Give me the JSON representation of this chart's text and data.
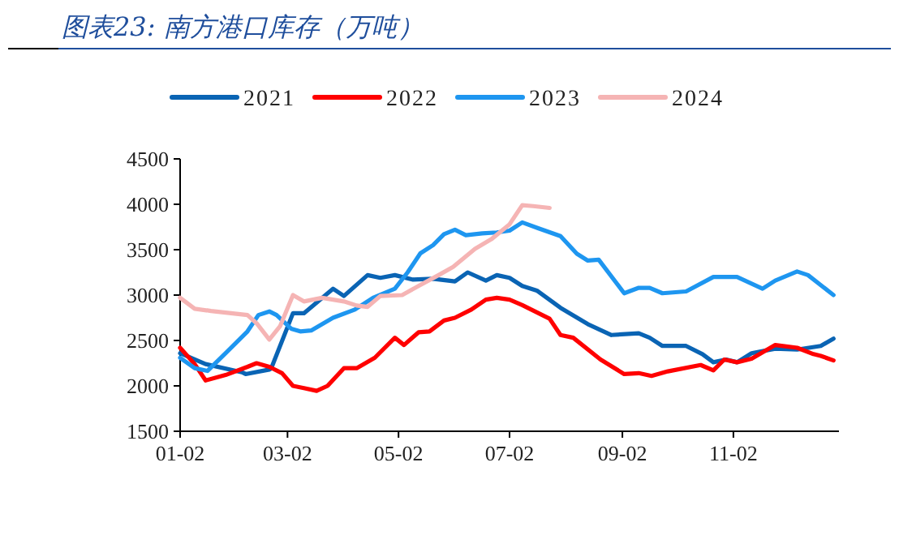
{
  "chart_data": {
    "type": "line",
    "title": "图表23: 南方港口库存（万吨）",
    "xlim": [
      "--01-02",
      "--12-30"
    ],
    "xticks": [
      {
        "value": "--01-02",
        "label": "01-02"
      },
      {
        "value": "--03-02",
        "label": "03-02"
      },
      {
        "value": "--05-02",
        "label": "05-02"
      },
      {
        "value": "--07-02",
        "label": "07-02"
      },
      {
        "value": "--09-02",
        "label": "09-02"
      },
      {
        "value": "--11-02",
        "label": "11-02"
      }
    ],
    "ylim": [
      1500,
      4500
    ],
    "yticks": [
      1500,
      2000,
      2500,
      3000,
      3500,
      4000,
      4500
    ],
    "grid": false,
    "legend": "top",
    "marker": "none",
    "line_style": "solid",
    "series": [
      {
        "name": "2021",
        "color": "#0a64b4",
        "x": [
          "--01-02",
          "--01-16",
          "--02-05",
          "--02-07",
          "--02-20",
          "--02-21",
          "--03-05",
          "--03-11",
          "--03-27",
          "--04-02",
          "--04-15",
          "--04-22",
          "--04-30",
          "--05-10",
          "--05-21",
          "--06-02",
          "--06-09",
          "--06-19",
          "--06-25",
          "--07-02",
          "--07-09",
          "--07-17",
          "--07-30",
          "--08-14",
          "--08-27",
          "--09-11",
          "--09-17",
          "--09-24",
          "--10-07",
          "--10-16",
          "--10-22",
          "--10-29",
          "--11-04",
          "--11-12",
          "--11-25",
          "--12-07",
          "--12-20",
          "--12-27"
        ],
        "values": [
          2360,
          2240,
          2150,
          2130,
          2180,
          2190,
          2800,
          2800,
          3070,
          2990,
          3220,
          3190,
          3220,
          3170,
          3180,
          3150,
          3250,
          3160,
          3220,
          3190,
          3100,
          3050,
          2860,
          2680,
          2560,
          2580,
          2530,
          2440,
          2440,
          2350,
          2260,
          2290,
          2260,
          2360,
          2410,
          2400,
          2440,
          2520
        ]
      },
      {
        "name": "2022",
        "color": "#ff0000",
        "x": [
          "--01-02",
          "--01-10",
          "--01-16",
          "--01-27",
          "--02-08",
          "--02-13",
          "--02-20",
          "--02-27",
          "--03-05",
          "--03-11",
          "--03-18",
          "--03-24",
          "--04-02",
          "--04-09",
          "--04-19",
          "--04-30",
          "--05-05",
          "--05-13",
          "--05-19",
          "--05-27",
          "--06-02",
          "--06-11",
          "--06-19",
          "--06-25",
          "--07-02",
          "--07-09",
          "--07-24",
          "--07-30",
          "--08-06",
          "--08-21",
          "--09-03",
          "--09-11",
          "--09-18",
          "--09-27",
          "--10-15",
          "--10-22",
          "--10-28",
          "--11-04",
          "--11-12",
          "--11-25",
          "--12-07",
          "--12-16",
          "--12-20",
          "--12-27"
        ],
        "values": [
          2420,
          2240,
          2060,
          2120,
          2210,
          2250,
          2210,
          2140,
          2000,
          1975,
          1945,
          2000,
          2195,
          2195,
          2310,
          2530,
          2450,
          2590,
          2600,
          2720,
          2750,
          2840,
          2950,
          2970,
          2950,
          2890,
          2740,
          2560,
          2530,
          2290,
          2130,
          2140,
          2110,
          2160,
          2230,
          2170,
          2290,
          2260,
          2300,
          2450,
          2420,
          2350,
          2330,
          2280
        ]
      },
      {
        "name": "2023",
        "color": "#1e96f0",
        "x": [
          "--01-02",
          "--01-10",
          "--01-17",
          "--01-27",
          "--02-08",
          "--02-14",
          "--02-20",
          "--02-24",
          "--03-04",
          "--03-09",
          "--03-15",
          "--03-27",
          "--04-08",
          "--04-18",
          "--04-30",
          "--05-07",
          "--05-14",
          "--05-21",
          "--05-27",
          "--06-02",
          "--06-08",
          "--06-17",
          "--06-25",
          "--07-02",
          "--07-09",
          "--07-18",
          "--07-30",
          "--08-08",
          "--08-14",
          "--08-20",
          "--09-03",
          "--09-11",
          "--09-17",
          "--09-24",
          "--10-07",
          "--10-22",
          "--11-04",
          "--11-18",
          "--11-25",
          "--12-07",
          "--12-13",
          "--12-27"
        ],
        "values": [
          2310,
          2195,
          2165,
          2360,
          2600,
          2780,
          2820,
          2780,
          2630,
          2600,
          2610,
          2750,
          2840,
          2970,
          3070,
          3250,
          3460,
          3550,
          3670,
          3720,
          3660,
          3680,
          3690,
          3710,
          3800,
          3735,
          3650,
          3455,
          3380,
          3390,
          3020,
          3080,
          3080,
          3020,
          3040,
          3200,
          3200,
          3070,
          3160,
          3260,
          3220,
          3000
        ]
      },
      {
        "name": "2024",
        "color": "#f5b4b4",
        "x": [
          "--01-02",
          "--01-10",
          "--01-19",
          "--02-08",
          "--02-13",
          "--02-20",
          "--02-26",
          "--03-05",
          "--03-11",
          "--03-21",
          "--04-02",
          "--04-09",
          "--04-15",
          "--04-22",
          "--05-04",
          "--05-13",
          "--05-24",
          "--06-01",
          "--06-13",
          "--06-22",
          "--07-02",
          "--07-09",
          "--07-15",
          "--07-24"
        ],
        "values": [
          2970,
          2850,
          2825,
          2780,
          2690,
          2510,
          2660,
          3000,
          2930,
          2970,
          2930,
          2885,
          2870,
          2990,
          3000,
          3100,
          3220,
          3310,
          3510,
          3615,
          3780,
          3990,
          3980,
          3960
        ]
      }
    ]
  }
}
